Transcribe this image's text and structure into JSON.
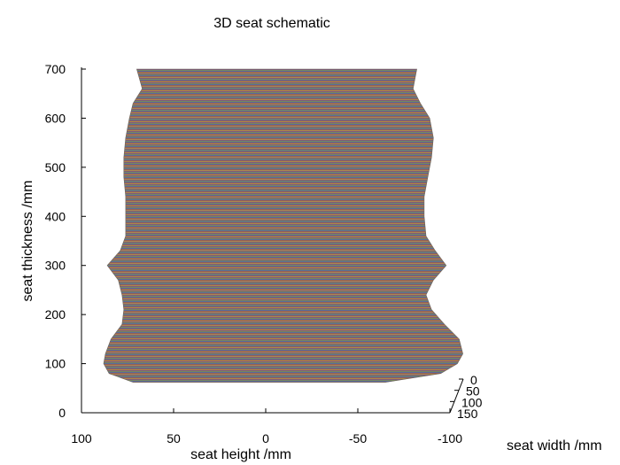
{
  "chart_data": {
    "type": "surface",
    "title": "3D seat schematic",
    "xlabel": "seat height  /mm",
    "ylabel": "seat thickness  /mm",
    "zlabel": "seat width  /mm",
    "xlim": [
      100,
      -100
    ],
    "ylim": [
      0,
      700
    ],
    "zlim": [
      0,
      150
    ],
    "x_ticks": [
      "100",
      "50",
      "0",
      "-50",
      "-100"
    ],
    "y_ticks": [
      "0",
      "100",
      "200",
      "300",
      "400",
      "500",
      "600",
      "700"
    ],
    "z_ticks": [
      "0",
      "50",
      "100",
      "150"
    ],
    "outline": {
      "right": [
        [
          65,
          -100
        ],
        [
          61,
          -95
        ],
        [
          60,
          -90
        ],
        [
          57,
          -85
        ],
        [
          52,
          -80
        ],
        [
          43,
          -75
        ],
        [
          -5,
          -73
        ],
        [
          -31,
          -74
        ],
        [
          -42,
          -75
        ],
        [
          -52,
          -80
        ],
        [
          -58,
          -85
        ],
        [
          -60,
          -90
        ],
        [
          -61,
          -95
        ],
        [
          -65,
          -100
        ],
        [
          -73,
          -105
        ],
        [
          -77,
          -110
        ],
        [
          -80,
          -115
        ],
        [
          -83,
          -120
        ],
        [
          -86,
          -125
        ]
      ],
      "left": [
        [
          65,
          67
        ],
        [
          61,
          73
        ],
        [
          60,
          75
        ],
        [
          57,
          78
        ],
        [
          52,
          79
        ],
        [
          43,
          80
        ],
        [
          -5,
          82
        ],
        [
          -31,
          85
        ],
        [
          -42,
          86
        ],
        [
          -52,
          85
        ],
        [
          -58,
          83
        ],
        [
          -60,
          82
        ],
        [
          -61,
          81
        ],
        [
          -65,
          80
        ],
        [
          -73,
          78
        ],
        [
          -77,
          76
        ],
        [
          -80,
          75
        ],
        [
          -83,
          74
        ],
        [
          -86,
          73
        ]
      ]
    },
    "stripe_colors": [
      "#3b63c4",
      "#c0392b",
      "#e0a030",
      "#7a2f9a",
      "#6aa84f"
    ],
    "surface_color": "#7f7368"
  }
}
